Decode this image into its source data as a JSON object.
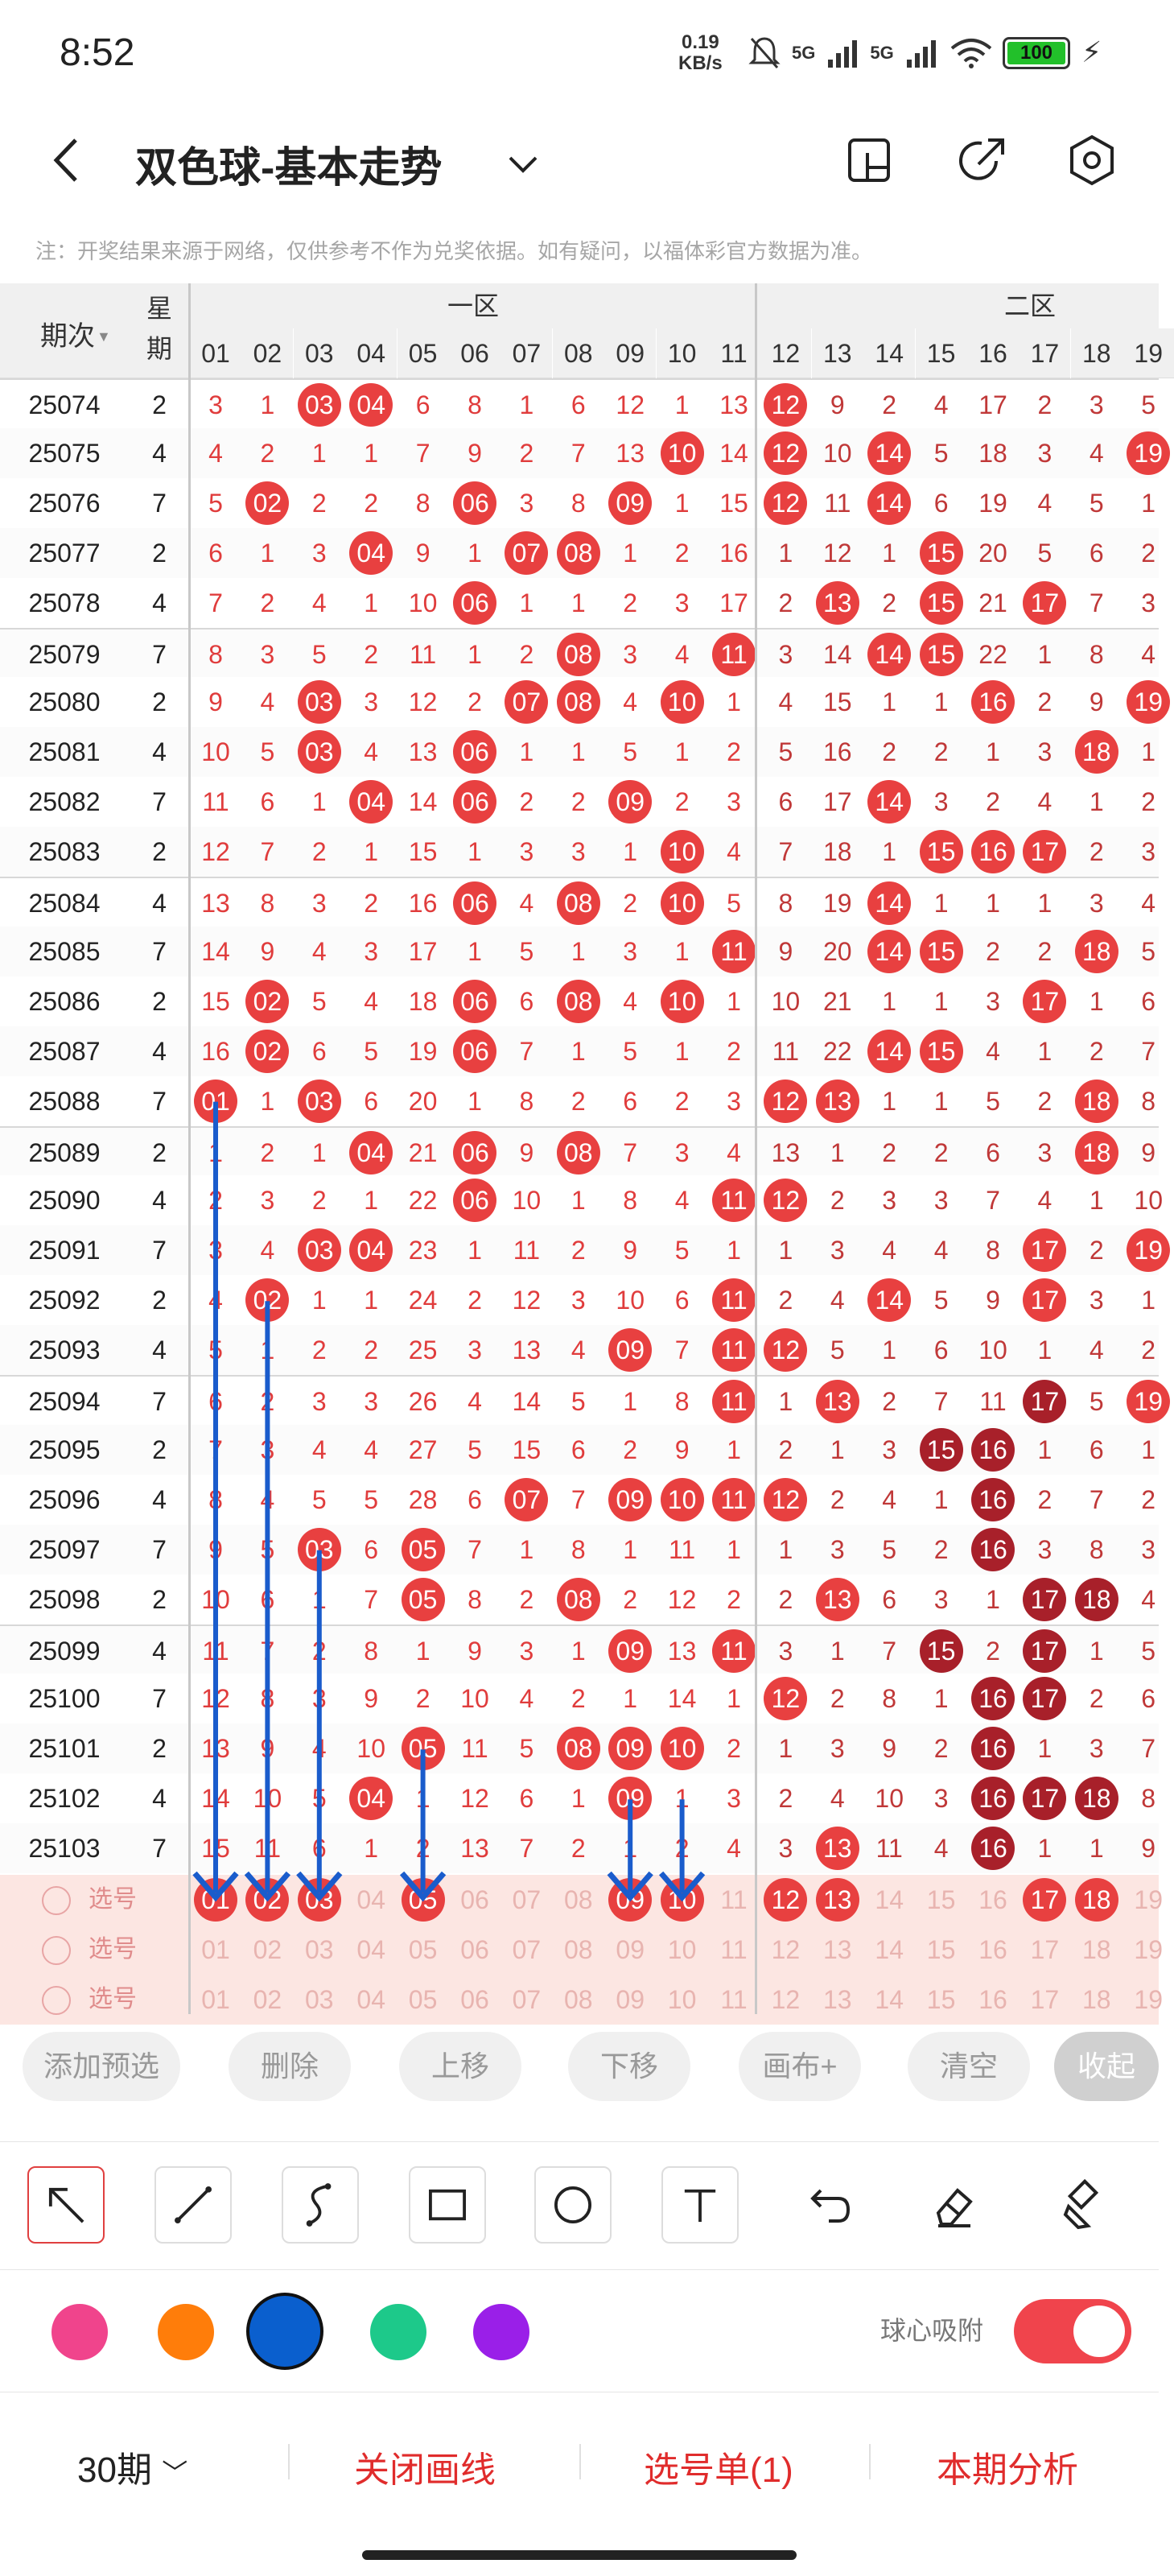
{
  "status": {
    "time": "8:52",
    "speed_value": "0.19",
    "speed_unit": "KB/s",
    "signal1": "5G",
    "signal2": "5G",
    "battery": "100"
  },
  "header": {
    "title": "双色球-基本走势"
  },
  "notice": "注：开奖结果来源于网络，仅供参考不作为兑奖依据。如有疑问，以福体彩官方数据为准。",
  "table": {
    "period_label": "期次",
    "week_label1": "星",
    "week_label2": "期",
    "zone1_label": "一区",
    "zone2_label": "二区",
    "columns": [
      "01",
      "02",
      "03",
      "04",
      "05",
      "06",
      "07",
      "08",
      "09",
      "10",
      "11",
      "12",
      "13",
      "14",
      "15",
      "16",
      "17",
      "18",
      "19"
    ],
    "rows": [
      {
        "p": "25074",
        "w": "2",
        "c": [
          "3",
          "1",
          "03",
          "04",
          "6",
          "8",
          "1",
          "6",
          "12",
          "1",
          "13",
          "12",
          "9",
          "2",
          "4",
          "17",
          "2",
          "3",
          "5"
        ]
      },
      {
        "p": "25075",
        "w": "4",
        "c": [
          "4",
          "2",
          "1",
          "1",
          "7",
          "9",
          "2",
          "7",
          "13",
          "10",
          "14",
          "12",
          "10",
          "14",
          "5",
          "18",
          "3",
          "4",
          "19"
        ]
      },
      {
        "p": "25076",
        "w": "7",
        "c": [
          "5",
          "02",
          "2",
          "2",
          "8",
          "06",
          "3",
          "8",
          "09",
          "1",
          "15",
          "12",
          "11",
          "14",
          "6",
          "19",
          "4",
          "5",
          "1"
        ]
      },
      {
        "p": "25077",
        "w": "2",
        "c": [
          "6",
          "1",
          "3",
          "04",
          "9",
          "1",
          "07",
          "08",
          "1",
          "2",
          "16",
          "1",
          "12",
          "1",
          "15",
          "20",
          "5",
          "6",
          "2"
        ]
      },
      {
        "p": "25078",
        "w": "4",
        "c": [
          "7",
          "2",
          "4",
          "1",
          "10",
          "06",
          "1",
          "1",
          "2",
          "3",
          "17",
          "2",
          "13",
          "2",
          "15",
          "21",
          "17",
          "7",
          "3"
        ]
      },
      {
        "p": "25079",
        "w": "7",
        "c": [
          "8",
          "3",
          "5",
          "2",
          "11",
          "1",
          "2",
          "08",
          "3",
          "4",
          "11",
          "3",
          "14",
          "14",
          "15",
          "22",
          "1",
          "8",
          "4"
        ]
      },
      {
        "p": "25080",
        "w": "2",
        "c": [
          "9",
          "4",
          "03",
          "3",
          "12",
          "2",
          "07",
          "08",
          "4",
          "10",
          "1",
          "4",
          "15",
          "1",
          "1",
          "16",
          "2",
          "9",
          "19"
        ]
      },
      {
        "p": "25081",
        "w": "4",
        "c": [
          "10",
          "5",
          "03",
          "4",
          "13",
          "06",
          "1",
          "1",
          "5",
          "1",
          "2",
          "5",
          "16",
          "2",
          "2",
          "1",
          "3",
          "18",
          "1"
        ]
      },
      {
        "p": "25082",
        "w": "7",
        "c": [
          "11",
          "6",
          "1",
          "04",
          "14",
          "06",
          "2",
          "2",
          "09",
          "2",
          "3",
          "6",
          "17",
          "14",
          "3",
          "2",
          "4",
          "1",
          "2"
        ]
      },
      {
        "p": "25083",
        "w": "2",
        "c": [
          "12",
          "7",
          "2",
          "1",
          "15",
          "1",
          "3",
          "3",
          "1",
          "10",
          "4",
          "7",
          "18",
          "1",
          "15",
          "16",
          "17",
          "2",
          "3"
        ]
      },
      {
        "p": "25084",
        "w": "4",
        "c": [
          "13",
          "8",
          "3",
          "2",
          "16",
          "06",
          "4",
          "08",
          "2",
          "10",
          "5",
          "8",
          "19",
          "14",
          "1",
          "1",
          "1",
          "3",
          "4"
        ]
      },
      {
        "p": "25085",
        "w": "7",
        "c": [
          "14",
          "9",
          "4",
          "3",
          "17",
          "1",
          "5",
          "1",
          "3",
          "1",
          "11",
          "9",
          "20",
          "14",
          "15",
          "2",
          "2",
          "18",
          "5"
        ]
      },
      {
        "p": "25086",
        "w": "2",
        "c": [
          "15",
          "02",
          "5",
          "4",
          "18",
          "06",
          "6",
          "08",
          "4",
          "10",
          "1",
          "10",
          "21",
          "1",
          "1",
          "3",
          "17",
          "1",
          "6"
        ]
      },
      {
        "p": "25087",
        "w": "4",
        "c": [
          "16",
          "02",
          "6",
          "5",
          "19",
          "06",
          "7",
          "1",
          "5",
          "1",
          "2",
          "11",
          "22",
          "14",
          "15",
          "4",
          "1",
          "2",
          "7"
        ]
      },
      {
        "p": "25088",
        "w": "7",
        "c": [
          "01",
          "1",
          "03",
          "6",
          "20",
          "1",
          "8",
          "2",
          "6",
          "2",
          "3",
          "12",
          "13",
          "1",
          "1",
          "5",
          "2",
          "18",
          "8"
        ]
      },
      {
        "p": "25089",
        "w": "2",
        "c": [
          "1",
          "2",
          "1",
          "04",
          "21",
          "06",
          "9",
          "08",
          "7",
          "3",
          "4",
          "13",
          "1",
          "2",
          "2",
          "6",
          "3",
          "18",
          "9"
        ]
      },
      {
        "p": "25090",
        "w": "4",
        "c": [
          "2",
          "3",
          "2",
          "1",
          "22",
          "06",
          "10",
          "1",
          "8",
          "4",
          "11",
          "12",
          "2",
          "3",
          "3",
          "7",
          "4",
          "1",
          "10"
        ]
      },
      {
        "p": "25091",
        "w": "7",
        "c": [
          "3",
          "4",
          "03",
          "04",
          "23",
          "1",
          "11",
          "2",
          "9",
          "5",
          "1",
          "1",
          "3",
          "4",
          "4",
          "8",
          "17",
          "2",
          "19"
        ]
      },
      {
        "p": "25092",
        "w": "2",
        "c": [
          "4",
          "02",
          "1",
          "1",
          "24",
          "2",
          "12",
          "3",
          "10",
          "6",
          "11",
          "2",
          "4",
          "14",
          "5",
          "9",
          "17",
          "3",
          "1"
        ]
      },
      {
        "p": "25093",
        "w": "4",
        "c": [
          "5",
          "1",
          "2",
          "2",
          "25",
          "3",
          "13",
          "4",
          "09",
          "7",
          "11",
          "12",
          "5",
          "1",
          "6",
          "10",
          "1",
          "4",
          "2"
        ]
      },
      {
        "p": "25094",
        "w": "7",
        "c": [
          "6",
          "2",
          "3",
          "3",
          "26",
          "4",
          "14",
          "5",
          "1",
          "8",
          "11",
          "1",
          "13",
          "2",
          "7",
          "11",
          "17",
          "5",
          "19"
        ]
      },
      {
        "p": "25095",
        "w": "2",
        "c": [
          "7",
          "3",
          "4",
          "4",
          "27",
          "5",
          "15",
          "6",
          "2",
          "9",
          "1",
          "2",
          "1",
          "3",
          "15",
          "16",
          "1",
          "6",
          "1"
        ]
      },
      {
        "p": "25096",
        "w": "4",
        "c": [
          "8",
          "4",
          "5",
          "5",
          "28",
          "6",
          "07",
          "7",
          "09",
          "10",
          "11",
          "12",
          "2",
          "4",
          "1",
          "16",
          "2",
          "7",
          "2"
        ]
      },
      {
        "p": "25097",
        "w": "7",
        "c": [
          "9",
          "5",
          "03",
          "6",
          "05",
          "7",
          "1",
          "8",
          "1",
          "11",
          "1",
          "1",
          "3",
          "5",
          "2",
          "16",
          "3",
          "8",
          "3"
        ]
      },
      {
        "p": "25098",
        "w": "2",
        "c": [
          "10",
          "6",
          "1",
          "7",
          "05",
          "8",
          "2",
          "08",
          "2",
          "12",
          "2",
          "2",
          "13",
          "6",
          "3",
          "1",
          "17",
          "18",
          "4"
        ]
      },
      {
        "p": "25099",
        "w": "4",
        "c": [
          "11",
          "7",
          "2",
          "8",
          "1",
          "9",
          "3",
          "1",
          "09",
          "13",
          "11",
          "3",
          "1",
          "7",
          "15",
          "2",
          "17",
          "1",
          "5"
        ]
      },
      {
        "p": "25100",
        "w": "7",
        "c": [
          "12",
          "8",
          "3",
          "9",
          "2",
          "10",
          "4",
          "2",
          "1",
          "14",
          "1",
          "12",
          "2",
          "8",
          "1",
          "16",
          "17",
          "2",
          "6"
        ]
      },
      {
        "p": "25101",
        "w": "2",
        "c": [
          "13",
          "9",
          "4",
          "10",
          "05",
          "11",
          "5",
          "08",
          "09",
          "10",
          "2",
          "1",
          "3",
          "9",
          "2",
          "16",
          "1",
          "3",
          "7"
        ]
      },
      {
        "p": "25102",
        "w": "4",
        "c": [
          "14",
          "10",
          "5",
          "04",
          "1",
          "12",
          "6",
          "1",
          "09",
          "1",
          "3",
          "2",
          "4",
          "10",
          "3",
          "16",
          "17",
          "18",
          "8"
        ]
      },
      {
        "p": "25103",
        "w": "7",
        "c": [
          "15",
          "11",
          "6",
          "1",
          "2",
          "13",
          "7",
          "2",
          "1",
          "2",
          "4",
          "3",
          "13",
          "11",
          "4",
          "16",
          "1",
          "1",
          "9"
        ]
      }
    ],
    "selection": {
      "label": "选号",
      "row1": [
        "01",
        "02",
        "03",
        "04",
        "05",
        "06",
        "07",
        "08",
        "09",
        "10",
        "11",
        "12",
        "13",
        "14",
        "15",
        "16",
        "17",
        "18",
        "19"
      ],
      "row1_selected": [
        "01",
        "02",
        "03",
        "05",
        "09",
        "10",
        "12",
        "13",
        "17",
        "18"
      ],
      "row2": [
        "01",
        "02",
        "03",
        "04",
        "05",
        "06",
        "07",
        "08",
        "09",
        "10",
        "11",
        "12",
        "13",
        "14",
        "15",
        "16",
        "17",
        "18",
        "19"
      ],
      "row3": [
        "01",
        "02",
        "03",
        "04",
        "05",
        "06",
        "07",
        "08",
        "09",
        "10",
        "11",
        "12",
        "13",
        "14",
        "15",
        "16",
        "17",
        "18",
        "19"
      ]
    }
  },
  "actions": {
    "add": "添加预选",
    "delete": "删除",
    "up": "上移",
    "down": "下移",
    "canvas": "画布+",
    "clear": "清空",
    "collapse": "收起"
  },
  "draw": {
    "tools": [
      "arrow-tool",
      "line-tool",
      "curve-tool",
      "rectangle-tool",
      "circle-tool",
      "text-tool",
      "undo-tool",
      "eraser-tool",
      "clear-drawing-tool"
    ],
    "colors": [
      "#f0448c",
      "#ff7d0a",
      "#0a5fce",
      "#1dc98a",
      "#9a1fe8"
    ],
    "selected_color": "#0a5fce",
    "snap_label": "球心吸附",
    "snap_on": true
  },
  "footer": {
    "period": "30期",
    "close_lines": "关闭画线",
    "pick_list": "选号单(1)",
    "analysis": "本期分析"
  }
}
